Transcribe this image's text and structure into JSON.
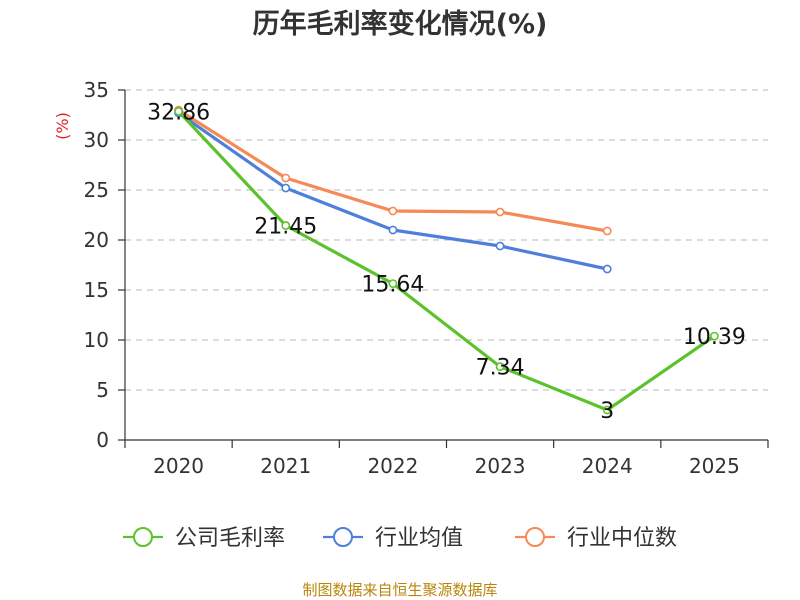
{
  "chart_data": {
    "type": "line",
    "title": "历年毛利率变化情况(%)",
    "ylabel": "(%)",
    "xlabel": "",
    "ylim": [
      0,
      35
    ],
    "yticks": [
      0,
      5,
      10,
      15,
      20,
      25,
      30,
      35
    ],
    "categories": [
      "2020",
      "2021",
      "2022",
      "2023",
      "2024",
      "2025"
    ],
    "grid": true,
    "legend_position": "bottom",
    "series": [
      {
        "name": "公司毛利率",
        "color": "#5cc22c",
        "values": [
          32.86,
          21.45,
          15.64,
          7.34,
          3,
          10.39
        ],
        "labels": [
          "32.86",
          "21.45",
          "15.64",
          "7.34",
          "3",
          "10.39"
        ]
      },
      {
        "name": "行业均值",
        "color": "#4e7fdc",
        "values": [
          32.7,
          25.2,
          21.0,
          19.4,
          17.1,
          null
        ]
      },
      {
        "name": "行业中位数",
        "color": "#f58a56",
        "values": [
          33.0,
          26.2,
          22.9,
          22.8,
          20.9,
          null
        ]
      }
    ]
  },
  "colors": {
    "axis": "#333333",
    "grid": "#c8c8c8",
    "ylabel": "#e02020",
    "source": "#b8860b"
  },
  "source_text": "制图数据来自恒生聚源数据库"
}
